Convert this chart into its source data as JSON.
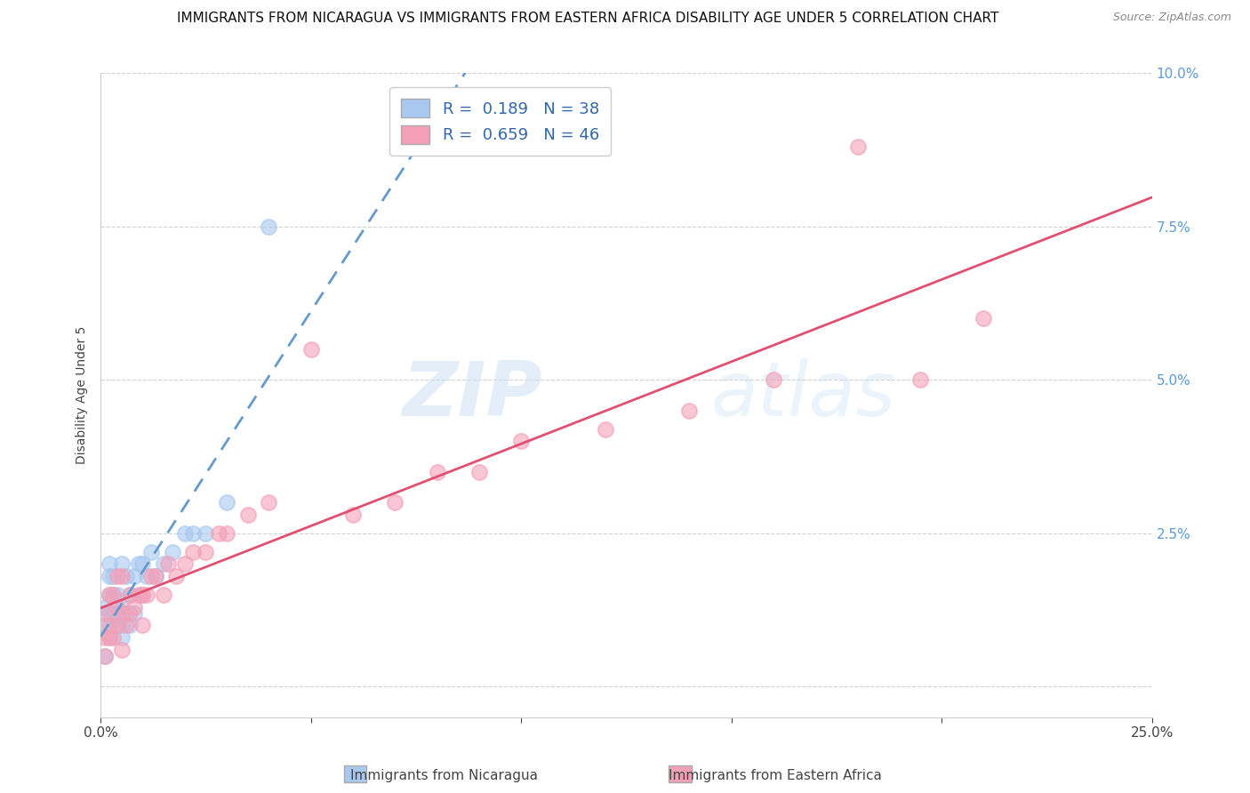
{
  "title": "IMMIGRANTS FROM NICARAGUA VS IMMIGRANTS FROM EASTERN AFRICA DISABILITY AGE UNDER 5 CORRELATION CHART",
  "source": "Source: ZipAtlas.com",
  "ylabel": "Disability Age Under 5",
  "xlim": [
    0.0,
    0.25
  ],
  "ylim": [
    -0.005,
    0.1
  ],
  "yticks": [
    0.0,
    0.025,
    0.05,
    0.075,
    0.1
  ],
  "xticks": [
    0.0,
    0.05,
    0.1,
    0.15,
    0.2,
    0.25
  ],
  "color_nicaragua": "#A8C8F0",
  "color_eastern_africa": "#F4A0B8",
  "line_color_nicaragua": "#6699CC",
  "line_color_eastern_africa": "#E05070",
  "R_nicaragua": 0.189,
  "N_nicaragua": 38,
  "R_eastern_africa": 0.659,
  "N_eastern_africa": 46,
  "legend_label_nicaragua": "Immigrants from Nicaragua",
  "legend_label_eastern_africa": "Immigrants from Eastern Africa",
  "title_fontsize": 11,
  "axis_label_fontsize": 10,
  "tick_fontsize": 11,
  "watermark_zip": "ZIP",
  "watermark_atlas": "atlas",
  "nicaragua_x": [
    0.001,
    0.001,
    0.001,
    0.002,
    0.002,
    0.002,
    0.002,
    0.002,
    0.003,
    0.003,
    0.003,
    0.003,
    0.004,
    0.004,
    0.004,
    0.005,
    0.005,
    0.005,
    0.005,
    0.006,
    0.006,
    0.007,
    0.007,
    0.008,
    0.008,
    0.009,
    0.01,
    0.01,
    0.011,
    0.012,
    0.013,
    0.015,
    0.017,
    0.02,
    0.022,
    0.025,
    0.03,
    0.04
  ],
  "nicaragua_y": [
    0.005,
    0.01,
    0.013,
    0.008,
    0.012,
    0.015,
    0.018,
    0.02,
    0.01,
    0.012,
    0.015,
    0.018,
    0.01,
    0.012,
    0.015,
    0.008,
    0.01,
    0.013,
    0.02,
    0.012,
    0.018,
    0.01,
    0.015,
    0.012,
    0.018,
    0.02,
    0.015,
    0.02,
    0.018,
    0.022,
    0.018,
    0.02,
    0.022,
    0.025,
    0.025,
    0.025,
    0.03,
    0.075
  ],
  "eastern_africa_x": [
    0.001,
    0.001,
    0.001,
    0.002,
    0.002,
    0.002,
    0.003,
    0.003,
    0.004,
    0.004,
    0.004,
    0.005,
    0.005,
    0.005,
    0.006,
    0.007,
    0.007,
    0.008,
    0.009,
    0.01,
    0.01,
    0.011,
    0.012,
    0.013,
    0.015,
    0.016,
    0.018,
    0.02,
    0.022,
    0.025,
    0.028,
    0.03,
    0.035,
    0.04,
    0.05,
    0.06,
    0.07,
    0.08,
    0.09,
    0.1,
    0.12,
    0.14,
    0.16,
    0.18,
    0.195,
    0.21
  ],
  "eastern_africa_y": [
    0.005,
    0.008,
    0.012,
    0.008,
    0.01,
    0.015,
    0.008,
    0.015,
    0.01,
    0.013,
    0.018,
    0.006,
    0.012,
    0.018,
    0.01,
    0.012,
    0.015,
    0.013,
    0.015,
    0.01,
    0.015,
    0.015,
    0.018,
    0.018,
    0.015,
    0.02,
    0.018,
    0.02,
    0.022,
    0.022,
    0.025,
    0.025,
    0.028,
    0.03,
    0.055,
    0.028,
    0.03,
    0.035,
    0.035,
    0.04,
    0.042,
    0.045,
    0.05,
    0.088,
    0.05,
    0.06
  ]
}
